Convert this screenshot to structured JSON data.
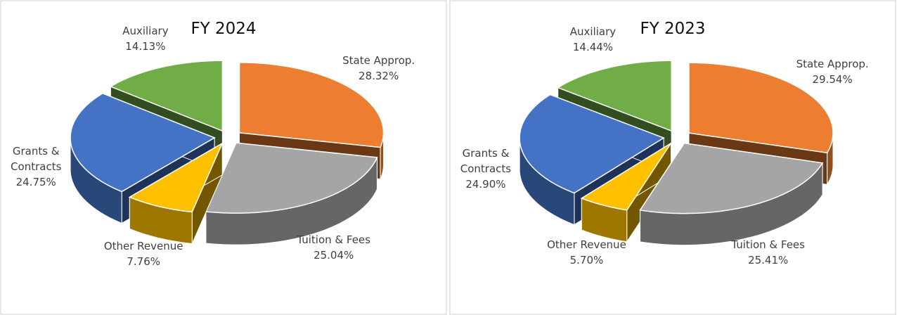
{
  "chart_data": [
    {
      "type": "pie",
      "title": "FY 2024",
      "categories": [
        "State Approp.",
        "Tuition & Fees",
        "Other Revenue",
        "Grants & Contracts",
        "Auxiliary"
      ],
      "values": [
        28.32,
        25.04,
        7.76,
        24.75,
        14.13
      ],
      "value_labels": [
        "28.32%",
        "25.04%",
        "7.76%",
        "24.75%",
        "14.13%"
      ],
      "colors": [
        "#ed7d31",
        "#a5a5a5",
        "#ffc000",
        "#4472c4",
        "#70ad47"
      ]
    },
    {
      "type": "pie",
      "title": "FY 2023",
      "categories": [
        "State Approp.",
        "Tuition & Fees",
        "Other Revenue",
        "Grants & Contracts",
        "Auxiliary"
      ],
      "values": [
        29.54,
        25.41,
        5.7,
        24.9,
        14.44
      ],
      "value_labels": [
        "29.54%",
        "25.41%",
        "5.70%",
        "24.90%",
        "14.44%"
      ],
      "colors": [
        "#ed7d31",
        "#a5a5a5",
        "#ffc000",
        "#4472c4",
        "#70ad47"
      ]
    }
  ]
}
